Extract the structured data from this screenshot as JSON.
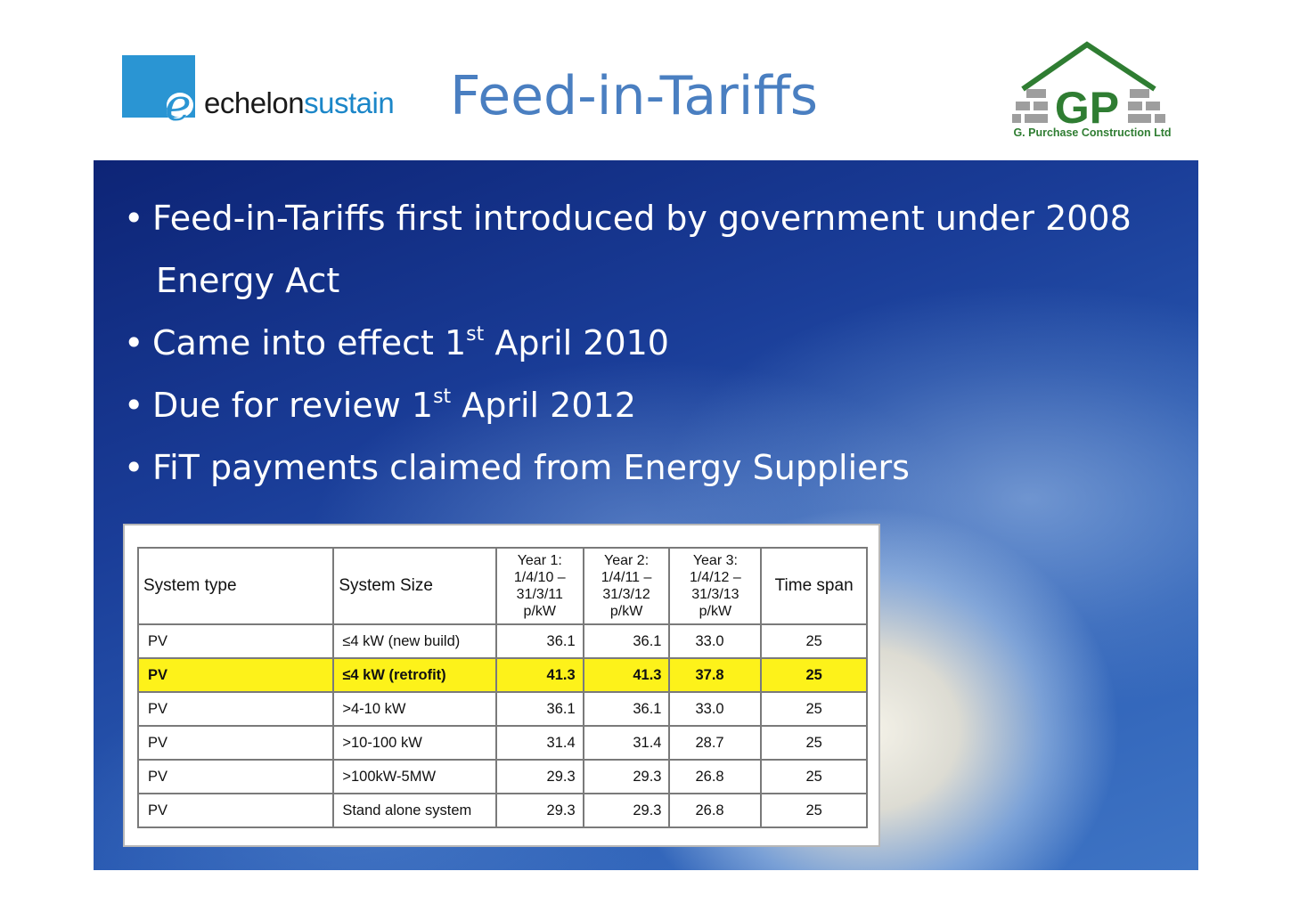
{
  "header": {
    "title": "Feed-in-Tariffs",
    "left_logo": {
      "word1": "echelon",
      "word2": "sustain"
    },
    "right_logo": {
      "initials": "GP",
      "caption": "G. Purchase Construction Ltd"
    }
  },
  "bullets": [
    {
      "text": "Feed-in-Tariffs first introduced by government under 2008",
      "sup": "",
      "after": ""
    },
    {
      "text": "Energy Act",
      "sup": "",
      "after": ""
    },
    {
      "text": "Came into effect 1",
      "sup": "st",
      "after": " April 2010"
    },
    {
      "text": "Due for review 1",
      "sup": "st",
      "after": " April 2012"
    },
    {
      "text": "FiT payments claimed from Energy Suppliers",
      "sup": "",
      "after": ""
    }
  ],
  "table": {
    "headers": {
      "system_type": "System type",
      "system_size": "System Size",
      "year1": [
        "Year 1:",
        "1/4/10 –",
        "31/3/11",
        "p/kW"
      ],
      "year2": [
        "Year 2:",
        "1/4/11 –",
        "31/3/12",
        "p/kW"
      ],
      "year3": [
        "Year 3:",
        "1/4/12 –",
        "31/3/13",
        "p/kW"
      ],
      "time_span": "Time span"
    },
    "rows": [
      {
        "type": "PV",
        "size": "≤4 kW (new build)",
        "y1": "36.1",
        "y2": "36.1",
        "y3": "33.0",
        "span": "25"
      },
      {
        "type": "PV",
        "size": "≤4 kW (retrofit)",
        "y1": "41.3",
        "y2": "41.3",
        "y3": "37.8",
        "span": "25"
      },
      {
        "type": "PV",
        "size": ">4-10 kW",
        "y1": "36.1",
        "y2": "36.1",
        "y3": "33.0",
        "span": "25"
      },
      {
        "type": "PV",
        "size": ">10-100 kW",
        "y1": "31.4",
        "y2": "31.4",
        "y3": "28.7",
        "span": "25"
      },
      {
        "type": "PV",
        "size": ">100kW-5MW",
        "y1": "29.3",
        "y2": "29.3",
        "y3": "26.8",
        "span": "25"
      },
      {
        "type": "PV",
        "size": "Stand alone system",
        "y1": "29.3",
        "y2": "29.3",
        "y3": "26.8",
        "span": "25"
      }
    ],
    "highlight_color": "#fdf21a"
  },
  "colors": {
    "title": "#4a7fc1",
    "logo_blue": "#2a95d3",
    "logo_green": "#2f7d32",
    "panel_dark": "#0d2476",
    "bullet_text": "#ffffff"
  }
}
